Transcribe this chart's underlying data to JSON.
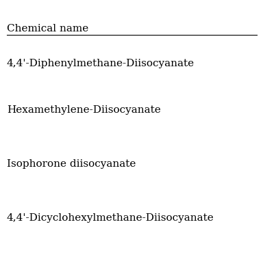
{
  "header": "Chemical name",
  "rows": [
    "4,4'-Diphenylmethane-Diisocyanate",
    "Hexamethylene-Diisocyanate",
    "Isophorone diisocyanate",
    "4,4'-Dicyclohexylmethane-Diisocyanate"
  ],
  "background_color": "#ffffff",
  "text_color": "#000000",
  "header_fontsize": 11,
  "row_fontsize": 11,
  "line_color": "#000000"
}
